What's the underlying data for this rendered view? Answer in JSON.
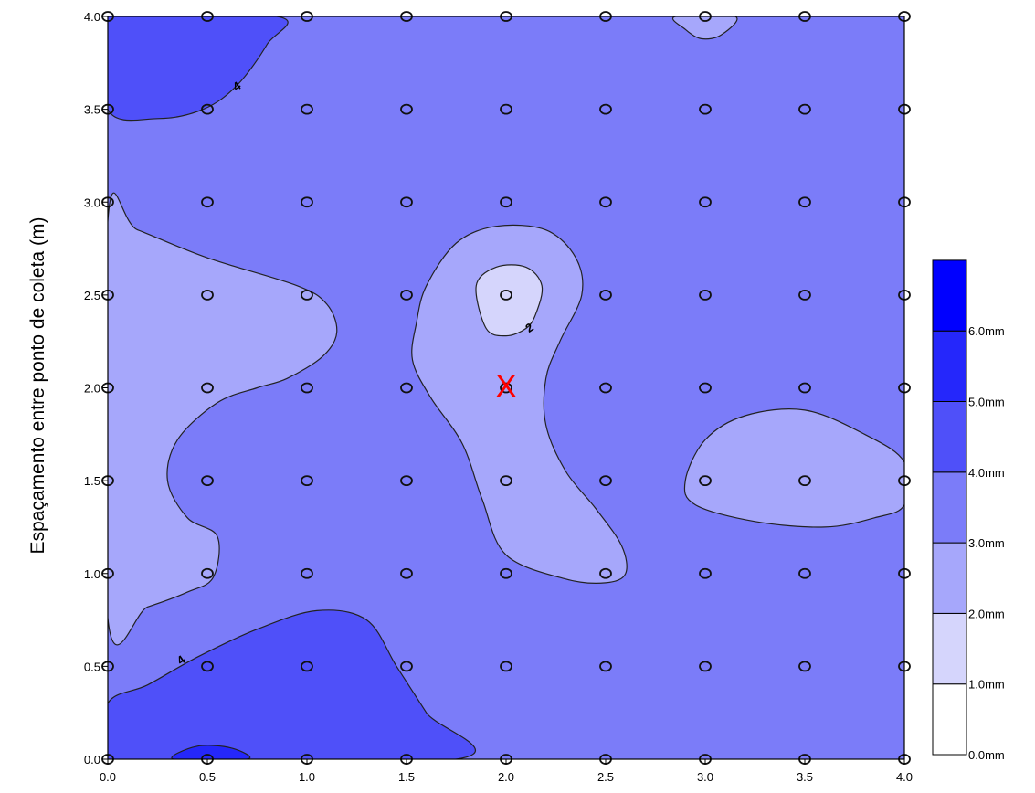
{
  "chart_data": {
    "type": "heatmap",
    "title": "",
    "xlabel": "",
    "ylabel": "Espaçamento entre ponto de coleta (m)",
    "xlim": [
      0,
      4
    ],
    "ylim": [
      0,
      4
    ],
    "x_ticks": [
      "0.0",
      "0.5",
      "1.0",
      "1.5",
      "2.0",
      "2.5",
      "3.0",
      "3.5",
      "4.0"
    ],
    "y_ticks": [
      "0.0",
      "0.5",
      "1.0",
      "1.5",
      "2.0",
      "2.5",
      "3.0",
      "3.5",
      "4.0"
    ],
    "grid": false,
    "sample_points": {
      "x": [
        0,
        0.5,
        1,
        1.5,
        2,
        2.5,
        3,
        3.5,
        4
      ],
      "y": [
        0,
        0.5,
        1,
        1.5,
        2,
        2.5,
        3,
        3.5,
        4
      ]
    },
    "marker": {
      "x": 2.0,
      "y": 2.0,
      "symbol": "X"
    },
    "contour_labels": [
      {
        "text": "4",
        "x": 0.65,
        "y": 3.62
      },
      {
        "text": "2",
        "x": 2.12,
        "y": 2.32
      },
      {
        "text": "4",
        "x": 0.37,
        "y": 0.53
      }
    ],
    "colors": {
      "background_level": "#7b7cf9",
      "level_0_1": "#ffffff",
      "level_1_2": "#d5d5fc",
      "level_2_3": "#a6a7fb",
      "level_3_4": "#7b7cf9",
      "level_4_5": "#4f50f9",
      "level_5_6": "#2527fb",
      "level_6_plus": "#0000ff",
      "marker": "#ff0000"
    },
    "regions": [
      {
        "level": "4-5",
        "points": [
          [
            0,
            4
          ],
          [
            0.85,
            4
          ],
          [
            0.8,
            3.85
          ],
          [
            0.65,
            3.63
          ],
          [
            0.48,
            3.5
          ],
          [
            0.25,
            3.45
          ],
          [
            0,
            3.5
          ]
        ]
      },
      {
        "level": "2-3",
        "points": [
          [
            2.85,
            4
          ],
          [
            3.15,
            4
          ],
          [
            3.08,
            3.9
          ],
          [
            2.98,
            3.88
          ],
          [
            2.9,
            3.93
          ]
        ]
      },
      {
        "level": "2-3",
        "points": [
          [
            0,
            2.9
          ],
          [
            0.15,
            2.85
          ],
          [
            0.5,
            2.7
          ],
          [
            0.95,
            2.55
          ],
          [
            1.1,
            2.45
          ],
          [
            1.15,
            2.3
          ],
          [
            1.08,
            2.17
          ],
          [
            0.9,
            2.05
          ],
          [
            0.75,
            2.0
          ],
          [
            0.55,
            1.92
          ],
          [
            0.35,
            1.72
          ],
          [
            0.3,
            1.5
          ],
          [
            0.4,
            1.3
          ],
          [
            0.55,
            1.2
          ],
          [
            0.53,
            0.98
          ],
          [
            0.4,
            0.9
          ],
          [
            0.2,
            0.82
          ],
          [
            0,
            0.76
          ]
        ]
      },
      {
        "level": "2-3",
        "points": [
          [
            1.75,
            2.78
          ],
          [
            1.95,
            2.87
          ],
          [
            2.2,
            2.85
          ],
          [
            2.35,
            2.7
          ],
          [
            2.38,
            2.5
          ],
          [
            2.27,
            2.25
          ],
          [
            2.2,
            2.05
          ],
          [
            2.2,
            1.8
          ],
          [
            2.3,
            1.55
          ],
          [
            2.45,
            1.35
          ],
          [
            2.58,
            1.15
          ],
          [
            2.6,
            1.0
          ],
          [
            2.5,
            0.95
          ],
          [
            2.3,
            0.97
          ],
          [
            2.0,
            1.1
          ],
          [
            1.88,
            1.4
          ],
          [
            1.78,
            1.7
          ],
          [
            1.62,
            1.95
          ],
          [
            1.53,
            2.15
          ],
          [
            1.55,
            2.35
          ],
          [
            1.6,
            2.55
          ]
        ]
      },
      {
        "level": "1-2",
        "points": [
          [
            1.85,
            2.55
          ],
          [
            1.95,
            2.65
          ],
          [
            2.1,
            2.65
          ],
          [
            2.18,
            2.55
          ],
          [
            2.15,
            2.4
          ],
          [
            2.1,
            2.32
          ],
          [
            2.0,
            2.28
          ],
          [
            1.9,
            2.32
          ]
        ]
      },
      {
        "level": "2-3",
        "points": [
          [
            4.0,
            1.6
          ],
          [
            3.8,
            1.75
          ],
          [
            3.5,
            1.88
          ],
          [
            3.2,
            1.85
          ],
          [
            3.0,
            1.72
          ],
          [
            2.9,
            1.5
          ],
          [
            2.95,
            1.37
          ],
          [
            3.25,
            1.28
          ],
          [
            3.6,
            1.25
          ],
          [
            3.85,
            1.3
          ],
          [
            4.0,
            1.37
          ]
        ]
      },
      {
        "level": "4-5",
        "points": [
          [
            0,
            0.3
          ],
          [
            0.2,
            0.4
          ],
          [
            0.45,
            0.55
          ],
          [
            0.75,
            0.7
          ],
          [
            1.05,
            0.8
          ],
          [
            1.3,
            0.75
          ],
          [
            1.45,
            0.5
          ],
          [
            1.6,
            0.25
          ],
          [
            1.75,
            0
          ],
          [
            0,
            0
          ]
        ]
      },
      {
        "level": "5-6",
        "points": [
          [
            0.33,
            0
          ],
          [
            0.45,
            0.07
          ],
          [
            0.62,
            0.06
          ],
          [
            0.7,
            0
          ]
        ]
      }
    ],
    "legend": {
      "placement": "right",
      "levels": [
        "0.0mm",
        "1.0mm",
        "2.0mm",
        "3.0mm",
        "4.0mm",
        "5.0mm",
        "6.0mm"
      ]
    }
  }
}
